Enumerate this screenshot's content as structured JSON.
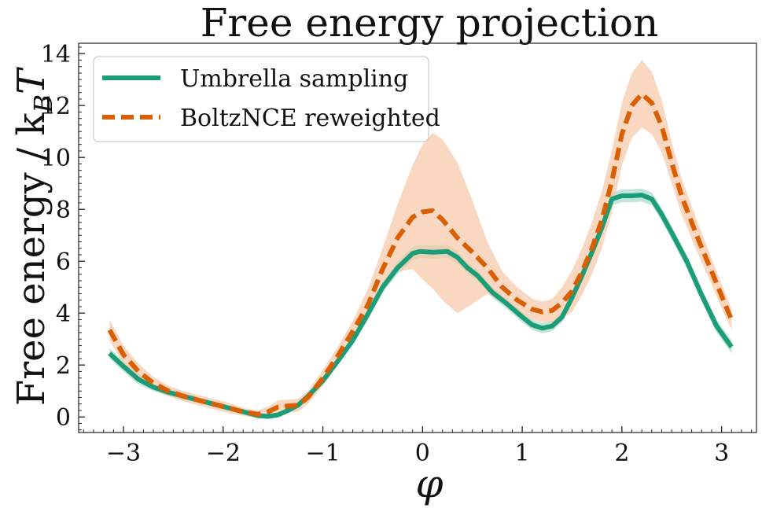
{
  "chart_data": {
    "type": "line",
    "title": "Free energy projection",
    "xlabel": "φ",
    "ylabel": "Free energy / k",
    "ylabel_sub": "B",
    "ylabel_tail": "T",
    "xlim": [
      -3.45,
      3.35
    ],
    "ylim": [
      -0.6,
      14.4
    ],
    "xticks": [
      -3,
      -2,
      -1,
      0,
      1,
      2,
      3
    ],
    "xtick_labels": [
      "−3",
      "−2",
      "−1",
      "0",
      "1",
      "2",
      "3"
    ],
    "yticks": [
      0,
      2,
      4,
      6,
      8,
      10,
      12,
      14
    ],
    "ytick_labels": [
      "0",
      "2",
      "4",
      "6",
      "8",
      "10",
      "12",
      "14"
    ],
    "grid": false,
    "legend_position": "top-left",
    "series": [
      {
        "name": "Umbrella sampling",
        "style": "solid",
        "color": "#1b9e77",
        "band_color": "#a6dcc9",
        "x": [
          -3.14,
          -3.0,
          -2.85,
          -2.7,
          -2.55,
          -2.4,
          -2.25,
          -2.1,
          -1.95,
          -1.8,
          -1.65,
          -1.55,
          -1.45,
          -1.35,
          -1.25,
          -1.15,
          -1.0,
          -0.85,
          -0.7,
          -0.55,
          -0.4,
          -0.25,
          -0.1,
          -0.03,
          0.1,
          0.25,
          0.35,
          0.45,
          0.55,
          0.7,
          0.85,
          1.0,
          1.1,
          1.2,
          1.3,
          1.4,
          1.5,
          1.6,
          1.7,
          1.8,
          1.9,
          2.0,
          2.1,
          2.2,
          2.3,
          2.4,
          2.5,
          2.65,
          2.8,
          2.95,
          3.1
        ],
        "y": [
          2.45,
          1.95,
          1.45,
          1.15,
          0.95,
          0.8,
          0.65,
          0.5,
          0.35,
          0.2,
          0.05,
          0.02,
          0.08,
          0.25,
          0.45,
          0.8,
          1.4,
          2.15,
          2.95,
          3.95,
          5.0,
          5.75,
          6.3,
          6.38,
          6.35,
          6.38,
          6.15,
          5.75,
          5.45,
          4.8,
          4.35,
          3.85,
          3.55,
          3.42,
          3.5,
          3.85,
          4.6,
          5.45,
          6.35,
          7.3,
          8.4,
          8.52,
          8.52,
          8.55,
          8.4,
          7.8,
          7.1,
          6.0,
          4.7,
          3.5,
          2.7
        ],
        "err": [
          0.2,
          0.2,
          0.2,
          0.15,
          0.15,
          0.15,
          0.1,
          0.1,
          0.1,
          0.1,
          0.1,
          0.1,
          0.1,
          0.1,
          0.1,
          0.1,
          0.1,
          0.15,
          0.15,
          0.2,
          0.2,
          0.25,
          0.25,
          0.25,
          0.25,
          0.25,
          0.25,
          0.2,
          0.2,
          0.2,
          0.2,
          0.2,
          0.2,
          0.2,
          0.2,
          0.2,
          0.2,
          0.25,
          0.25,
          0.25,
          0.25,
          0.25,
          0.25,
          0.25,
          0.25,
          0.25,
          0.25,
          0.25,
          0.25,
          0.25,
          0.25
        ]
      },
      {
        "name": "BoltzNCE reweighted",
        "style": "dashed",
        "color": "#d95f02",
        "band_color": "#f7c6a6",
        "x": [
          -3.14,
          -3.0,
          -2.85,
          -2.7,
          -2.55,
          -2.4,
          -2.25,
          -2.1,
          -1.95,
          -1.8,
          -1.65,
          -1.55,
          -1.45,
          -1.35,
          -1.25,
          -1.15,
          -1.0,
          -0.85,
          -0.7,
          -0.55,
          -0.4,
          -0.25,
          -0.1,
          0.0,
          0.1,
          0.2,
          0.35,
          0.5,
          0.65,
          0.8,
          0.95,
          1.1,
          1.2,
          1.3,
          1.4,
          1.5,
          1.6,
          1.7,
          1.8,
          1.9,
          2.0,
          2.1,
          2.2,
          2.3,
          2.4,
          2.5,
          2.6,
          2.75,
          2.9,
          3.05,
          3.1
        ],
        "y": [
          3.35,
          2.4,
          1.75,
          1.3,
          1.0,
          0.8,
          0.65,
          0.5,
          0.35,
          0.2,
          0.1,
          0.2,
          0.38,
          0.42,
          0.45,
          0.75,
          1.5,
          2.35,
          3.3,
          4.3,
          5.7,
          6.9,
          7.7,
          7.9,
          7.95,
          7.6,
          6.9,
          6.35,
          5.75,
          5.0,
          4.5,
          4.15,
          4.05,
          4.1,
          4.4,
          4.85,
          5.6,
          6.5,
          7.6,
          9.1,
          10.9,
          12.0,
          12.45,
          12.1,
          11.2,
          9.8,
          8.5,
          7.0,
          5.6,
          4.2,
          3.75
        ],
        "err": [
          0.4,
          0.35,
          0.3,
          0.25,
          0.2,
          0.2,
          0.2,
          0.2,
          0.2,
          0.15,
          0.15,
          0.2,
          0.25,
          0.25,
          0.25,
          0.25,
          0.3,
          0.35,
          0.4,
          0.6,
          0.8,
          1.3,
          2.0,
          2.6,
          3.0,
          3.1,
          2.9,
          2.0,
          1.0,
          0.6,
          0.5,
          0.4,
          0.4,
          0.45,
          0.6,
          0.8,
          0.9,
          1.0,
          1.1,
          1.2,
          1.2,
          1.25,
          1.3,
          1.2,
          1.0,
          0.8,
          0.7,
          0.6,
          0.5,
          0.45,
          0.4
        ]
      }
    ]
  }
}
